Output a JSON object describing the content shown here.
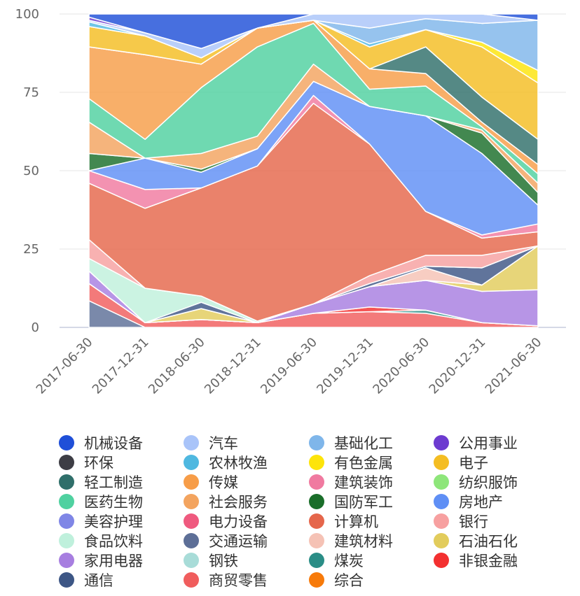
{
  "chart_data": {
    "type": "area",
    "stacked": true,
    "title": "",
    "xlabel": "",
    "ylabel": "",
    "ylim": [
      0,
      100
    ],
    "yticks": [
      "0",
      "25",
      "50",
      "75",
      "100"
    ],
    "grid": true,
    "legend_position": "bottom",
    "x": [
      "2017-06-30",
      "2017-12-31",
      "2018-06-30",
      "2018-12-31",
      "2019-06-30",
      "2019-12-31",
      "2020-06-30",
      "2020-12-31",
      "2021-06-30"
    ],
    "series": [
      {
        "name": "交通运输",
        "color": "#5d6f97",
        "values": [
          8.5,
          0,
          0,
          0,
          0,
          0,
          0,
          0,
          0
        ]
      },
      {
        "name": "商贸零售",
        "color": "#f05d5d",
        "values": [
          5.5,
          1.5,
          2.5,
          1.5,
          4.5,
          5,
          4.5,
          1.5,
          0.5
        ]
      },
      {
        "name": "煤炭",
        "color": "#2a8d86",
        "values": [
          0,
          0,
          0,
          0,
          0,
          0,
          1,
          0,
          0
        ]
      },
      {
        "name": "非银金融",
        "color": "#f33030",
        "values": [
          0,
          0,
          0,
          0,
          0,
          1.5,
          0,
          0,
          0
        ]
      },
      {
        "name": "家用电器",
        "color": "#a77ee0",
        "values": [
          4,
          0,
          0,
          0,
          3,
          6.5,
          9.5,
          10,
          11.5
        ]
      },
      {
        "name": "石油石化",
        "color": "#e2cc5c",
        "values": [
          0,
          0,
          3.5,
          0,
          0,
          0,
          0,
          2,
          14
        ]
      },
      {
        "name": "建筑材料",
        "color": "#f5c2b5",
        "values": [
          0,
          0,
          0,
          0,
          0,
          0,
          4,
          0,
          0
        ]
      },
      {
        "name": "通信",
        "color": "#3d5685",
        "values": [
          0,
          0,
          2,
          0,
          0,
          1,
          0.5,
          5.5,
          0
        ]
      },
      {
        "name": "食品饮料",
        "color": "#bff0dc",
        "values": [
          4,
          11,
          2,
          0.5,
          0,
          0,
          0,
          0,
          0
        ]
      },
      {
        "name": "银行",
        "color": "#f7a0a0",
        "values": [
          6,
          0,
          0,
          0,
          0,
          2.5,
          3.5,
          4,
          0
        ]
      },
      {
        "name": "计算机",
        "color": "#e5664b",
        "values": [
          18,
          25.5,
          34.5,
          49.5,
          64,
          42,
          14,
          5.5,
          4.5
        ]
      },
      {
        "name": "建筑装饰",
        "color": "#f07aa0",
        "values": [
          4,
          6,
          0,
          0,
          2.5,
          0,
          0,
          1,
          2.5
        ]
      },
      {
        "name": "房地产",
        "color": "#5f8ff5",
        "values": [
          0,
          10,
          5,
          5.5,
          4.5,
          12,
          30.5,
          26,
          6
        ]
      },
      {
        "name": "国防军工",
        "color": "#1a6e2a",
        "values": [
          5.5,
          0,
          1,
          0,
          0,
          0,
          0,
          6.5,
          4
        ]
      },
      {
        "name": "社会服务",
        "color": "#f3a45f",
        "values": [
          10,
          0,
          5,
          4,
          5.5,
          0,
          0,
          1,
          3
        ]
      },
      {
        "name": "医药生物",
        "color": "#4fd1a0",
        "values": [
          7.5,
          6,
          21,
          28.5,
          13,
          5.5,
          9.5,
          1,
          3
        ]
      },
      {
        "name": "传媒",
        "color": "#f79d48",
        "values": [
          16.5,
          27,
          7.5,
          6,
          1,
          6.5,
          4,
          1.5,
          3
        ]
      },
      {
        "name": "轻工制造",
        "color": "#2f6f6a",
        "values": [
          0,
          0,
          0,
          0,
          0,
          0,
          8.5,
          8,
          8
        ]
      },
      {
        "name": "电子",
        "color": "#f4bd22",
        "values": [
          6.5,
          6,
          2,
          0,
          0,
          7,
          5.5,
          16,
          18
        ]
      },
      {
        "name": "有色金属",
        "color": "#fde40a",
        "values": [
          0,
          0,
          0,
          0,
          0,
          0,
          0,
          1.5,
          4
        ]
      },
      {
        "name": "农林牧渔",
        "color": "#4fb8e0",
        "values": [
          1.5,
          0,
          0,
          0,
          0,
          1,
          0,
          0,
          0
        ]
      },
      {
        "name": "基础化工",
        "color": "#7fb6ea",
        "values": [
          0,
          0,
          0,
          0,
          0,
          5,
          3.5,
          6,
          16
        ]
      },
      {
        "name": "汽车",
        "color": "#a9c4f9",
        "values": [
          0.5,
          1,
          3,
          0,
          2,
          4.5,
          1.5,
          3,
          0
        ]
      },
      {
        "name": "公用事业",
        "color": "#6d3bd0",
        "values": [
          1,
          0,
          0,
          0,
          0,
          0,
          0,
          0,
          0
        ]
      },
      {
        "name": "机械设备",
        "color": "#1f4fd8",
        "values": [
          1,
          6,
          11,
          4.5,
          0,
          0,
          0,
          0,
          2
        ]
      },
      {
        "name": "环保",
        "color": "#3d3d45",
        "values": [
          0,
          0,
          0,
          0,
          0,
          0,
          0,
          0,
          0
        ]
      },
      {
        "name": "美容护理",
        "color": "#7f86e6",
        "values": [
          0,
          0,
          0,
          0,
          0,
          0,
          0,
          0,
          0
        ]
      },
      {
        "name": "电力设备",
        "color": "#ef5a7f",
        "values": [
          0,
          0,
          0,
          0,
          0,
          0,
          0,
          0,
          0
        ]
      },
      {
        "name": "钢铁",
        "color": "#a8dcd8",
        "values": [
          0,
          0,
          0,
          0,
          0,
          0,
          0,
          0,
          0
        ]
      },
      {
        "name": "纺织服饰",
        "color": "#8ee67a",
        "values": [
          0,
          0,
          0,
          0,
          0,
          0,
          0,
          0,
          0
        ]
      },
      {
        "name": "综合",
        "color": "#f77a0a",
        "values": [
          0,
          0,
          0,
          0,
          0,
          0,
          0,
          0,
          0
        ]
      }
    ],
    "legend": [
      "机械设备",
      "环保",
      "轻工制造",
      "医药生物",
      "美容护理",
      "食品饮料",
      "家用电器",
      "通信",
      "汽车",
      "农林牧渔",
      "传媒",
      "社会服务",
      "电力设备",
      "交通运输",
      "钢铁",
      "商贸零售",
      "基础化工",
      "有色金属",
      "建筑装饰",
      "国防军工",
      "计算机",
      "建筑材料",
      "煤炭",
      "综合",
      "公用事业",
      "电子",
      "纺织服饰",
      "房地产",
      "银行",
      "石油石化",
      "非银金融"
    ]
  }
}
